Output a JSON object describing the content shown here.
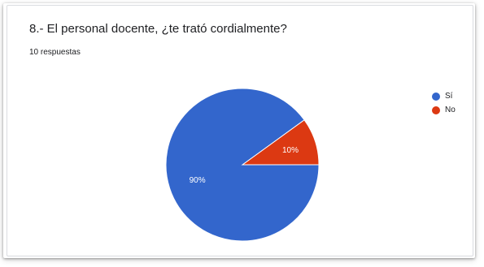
{
  "question": {
    "title": "8.- El personal docente, ¿te trató cordialmente?",
    "responses_label": "10 respuestas"
  },
  "colors": {
    "series": [
      "#3366cc",
      "#dc3912"
    ],
    "background": "#ffffff",
    "text": "#202124"
  },
  "chart_data": {
    "type": "pie",
    "title": "8.- El personal docente, ¿te trató cordialmente?",
    "categories": [
      "Sí",
      "No"
    ],
    "values": [
      90,
      10
    ],
    "labels": [
      "90%",
      "10%"
    ],
    "legend": "right"
  }
}
